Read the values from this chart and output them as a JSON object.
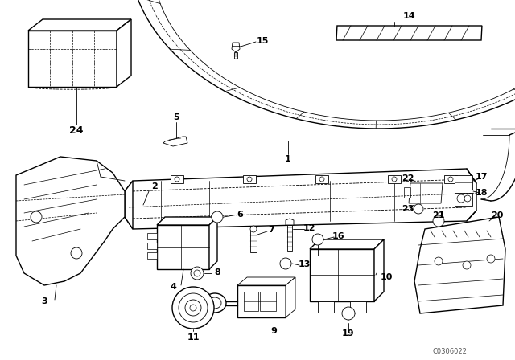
{
  "background_color": "#ffffff",
  "line_color": "#000000",
  "watermark": "C0306022",
  "figsize": [
    6.4,
    4.48
  ],
  "dpi": 100,
  "gray_light": "#e8e8e8",
  "gray_fill": "#f2f2f2"
}
